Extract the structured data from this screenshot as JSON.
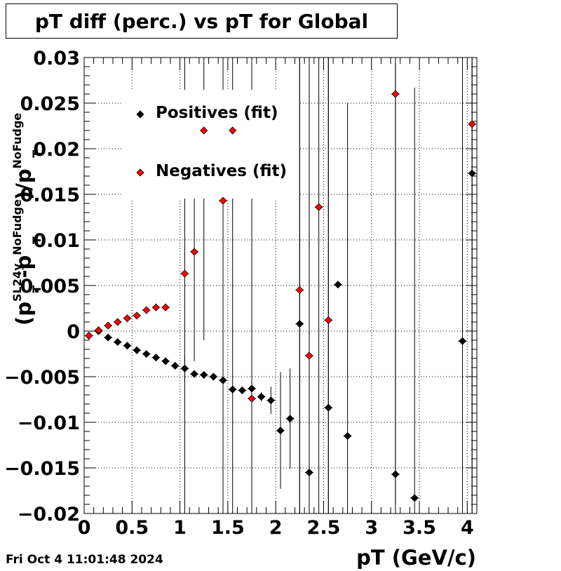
{
  "title": "pT diff (perc.) vs pT for Global",
  "datestamp": "Fri Oct  4 11:01:48 2024",
  "chart_data": {
    "type": "scatter",
    "title": "pT diff (perc.) vs pT for Global",
    "xlabel": "pT (GeV/c)",
    "ylabel": {
      "open": "(p",
      "t1_sup": "SL24y",
      "t1_sub": "T",
      "minus": " -p",
      "t2_sup": "NoFudge",
      "t2_sub": "T",
      "close": ")/p",
      "t3_sup": "NoFudge",
      "t3_sub": "T"
    },
    "xlim": [
      0,
      4.1
    ],
    "ylim": [
      -0.02,
      0.03
    ],
    "xticks": [
      0,
      0.5,
      1,
      1.5,
      2,
      2.5,
      3,
      3.5,
      4
    ],
    "xtick_labels": [
      "0",
      "0.5",
      "1",
      "1.5",
      "2",
      "2.5",
      "3",
      "3.5",
      "4"
    ],
    "yticks": [
      -0.02,
      -0.015,
      -0.01,
      -0.005,
      0,
      0.005,
      0.01,
      0.015,
      0.02,
      0.025,
      0.03
    ],
    "ytick_labels": [
      "−0.02",
      "−0.015",
      "−0.01",
      "−0.005",
      "0",
      "0.005",
      "0.01",
      "0.015",
      "0.02",
      "0.025",
      "0.03"
    ],
    "grid": true,
    "legend_position": "top-left",
    "series": [
      {
        "name": "Positives (fit)",
        "color": "#000000",
        "points": [
          {
            "x": 0.05,
            "y": -0.0005,
            "err": 0.0001
          },
          {
            "x": 0.15,
            "y": 0.0,
            "err": 0.0001
          },
          {
            "x": 0.25,
            "y": -0.0007,
            "err": 0.0001
          },
          {
            "x": 0.35,
            "y": -0.0012,
            "err": 0.0001
          },
          {
            "x": 0.45,
            "y": -0.0016,
            "err": 0.0001
          },
          {
            "x": 0.55,
            "y": -0.0021,
            "err": 0.0001
          },
          {
            "x": 0.65,
            "y": -0.0025,
            "err": 0.0001
          },
          {
            "x": 0.75,
            "y": -0.0029,
            "err": 0.0001
          },
          {
            "x": 0.85,
            "y": -0.0033,
            "err": 0.0002
          },
          {
            "x": 0.95,
            "y": -0.0038,
            "err": 0.0002
          },
          {
            "x": 1.05,
            "y": -0.0041,
            "err": 0.0015
          },
          {
            "x": 1.15,
            "y": -0.0047,
            "err": 0.0003
          },
          {
            "x": 1.25,
            "y": -0.0048,
            "err": 0.0003
          },
          {
            "x": 1.35,
            "y": -0.005,
            "err": 0.0003
          },
          {
            "x": 1.45,
            "y": -0.0054,
            "err": 0.0004
          },
          {
            "x": 1.55,
            "y": -0.0064,
            "err": 0.0004
          },
          {
            "x": 1.65,
            "y": -0.0065,
            "err": 0.0004
          },
          {
            "x": 1.75,
            "y": -0.0063,
            "err": 0.0005
          },
          {
            "x": 1.85,
            "y": -0.0072,
            "err": 0.0005
          },
          {
            "x": 1.95,
            "y": -0.0076,
            "err": 0.0015
          },
          {
            "x": 2.05,
            "y": -0.0109,
            "err": 0.0064
          },
          {
            "x": 2.15,
            "y": -0.0096,
            "err": 0.0055
          },
          {
            "x": 2.25,
            "y": 0.0008,
            "err": 0.045
          },
          {
            "x": 2.35,
            "y": -0.0155,
            "err": 0.045
          },
          {
            "x": 2.55,
            "y": -0.0084,
            "err": 0.045
          },
          {
            "x": 2.65,
            "y": 0.0051,
            "err": 0.0003
          },
          {
            "x": 2.75,
            "y": -0.0115,
            "err": 0.0365
          },
          {
            "x": 3.25,
            "y": -0.0157,
            "err": 0.045
          },
          {
            "x": 3.45,
            "y": -0.0183,
            "err": 0.045
          },
          {
            "x": 3.95,
            "y": -0.0011,
            "err": 0.045
          },
          {
            "x": 4.05,
            "y": 0.0173,
            "err": 0.045
          }
        ]
      },
      {
        "name": "Negatives (fit)",
        "color": "#ff0000",
        "points": [
          {
            "x": 0.05,
            "y": -0.0005,
            "err": 0.0001
          },
          {
            "x": 0.15,
            "y": 0.0001,
            "err": 0.0001
          },
          {
            "x": 0.25,
            "y": 0.0006,
            "err": 0.0001
          },
          {
            "x": 0.35,
            "y": 0.001,
            "err": 0.0001
          },
          {
            "x": 0.45,
            "y": 0.0014,
            "err": 0.0001
          },
          {
            "x": 0.55,
            "y": 0.0017,
            "err": 0.0001
          },
          {
            "x": 0.65,
            "y": 0.0023,
            "err": 0.0001
          },
          {
            "x": 0.75,
            "y": 0.0026,
            "err": 0.0001
          },
          {
            "x": 0.85,
            "y": 0.0026,
            "err": 0.0001
          },
          {
            "x": 1.05,
            "y": 0.0063,
            "err": 0.045
          },
          {
            "x": 1.15,
            "y": 0.0087,
            "err": 0.012
          },
          {
            "x": 1.25,
            "y": 0.022,
            "err": 0.023
          },
          {
            "x": 1.45,
            "y": 0.0143,
            "err": 0.045
          },
          {
            "x": 1.55,
            "y": 0.022,
            "err": 0.045
          },
          {
            "x": 1.75,
            "y": -0.0074,
            "err": 0.045
          },
          {
            "x": 2.25,
            "y": 0.0045,
            "err": 0.045
          },
          {
            "x": 2.35,
            "y": -0.0027,
            "err": 0.045
          },
          {
            "x": 2.45,
            "y": 0.0136,
            "err": 0.045
          },
          {
            "x": 2.55,
            "y": 0.0012,
            "err": 0.045
          },
          {
            "x": 3.25,
            "y": 0.026,
            "err": 0.045
          },
          {
            "x": 4.05,
            "y": 0.0227,
            "err": 0.045
          }
        ]
      }
    ]
  }
}
